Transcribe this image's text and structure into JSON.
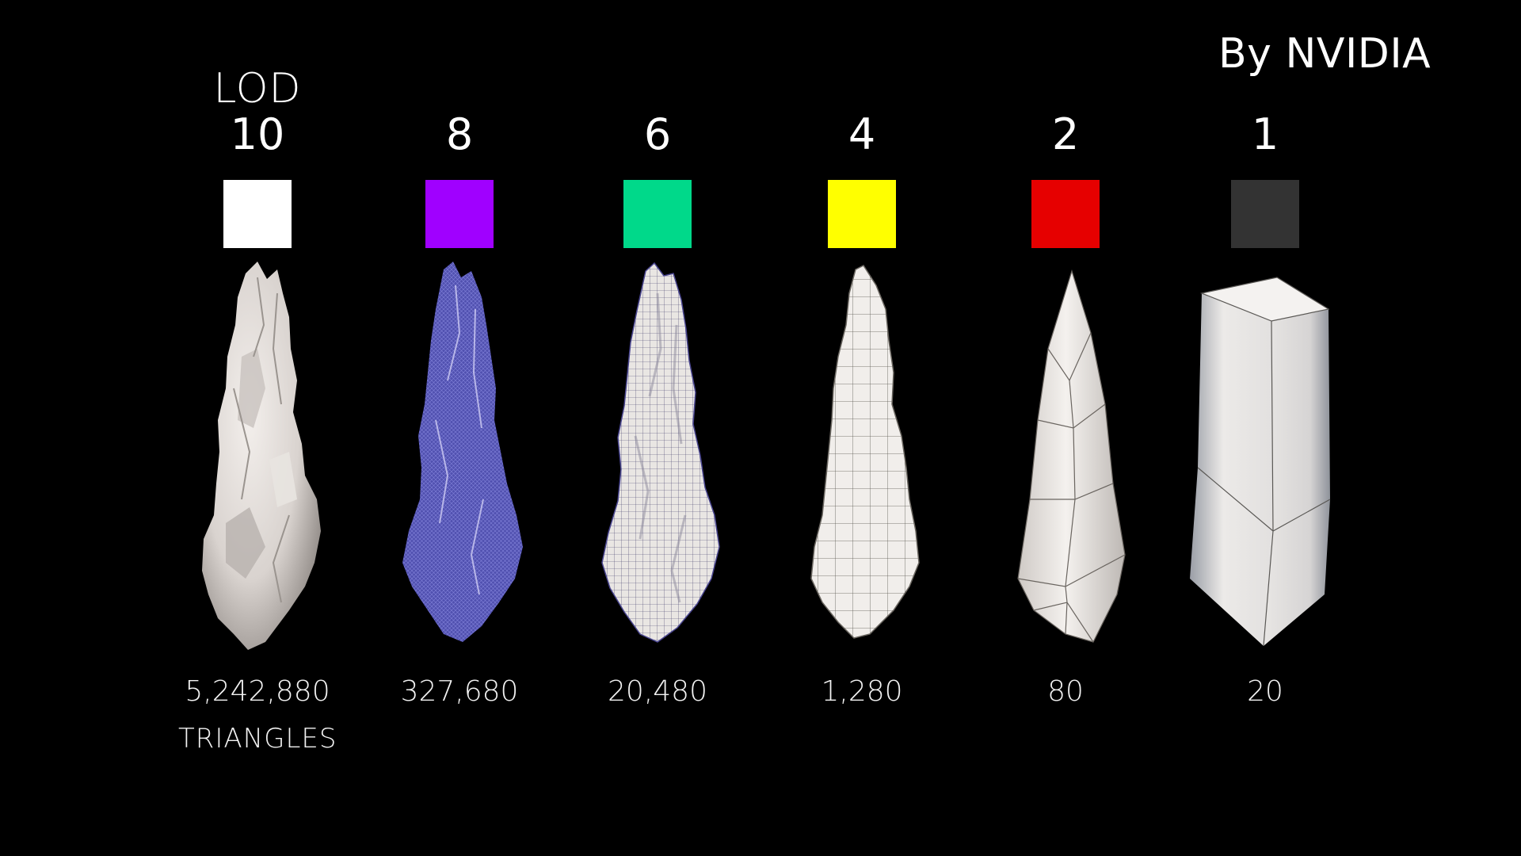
{
  "attribution": "By NVIDIA",
  "header_label": "LOD",
  "unit_label": "TRIANGLES",
  "levels": [
    {
      "number": "10",
      "swatch_color": "#ffffff",
      "triangles": "5,242,880",
      "mesh": "dense-sculpt"
    },
    {
      "number": "8",
      "swatch_color": "#a000ff",
      "triangles": "327,680",
      "mesh": "dense-wireframe-blue"
    },
    {
      "number": "6",
      "swatch_color": "#00d98a",
      "triangles": "20,480",
      "mesh": "fine-grid"
    },
    {
      "number": "4",
      "swatch_color": "#ffff00",
      "triangles": "1,280",
      "mesh": "medium-grid"
    },
    {
      "number": "2",
      "swatch_color": "#e60000",
      "triangles": "80",
      "mesh": "low-poly-spike"
    },
    {
      "number": "1",
      "swatch_color": "#333333",
      "triangles": "20",
      "mesh": "box-prism"
    }
  ]
}
